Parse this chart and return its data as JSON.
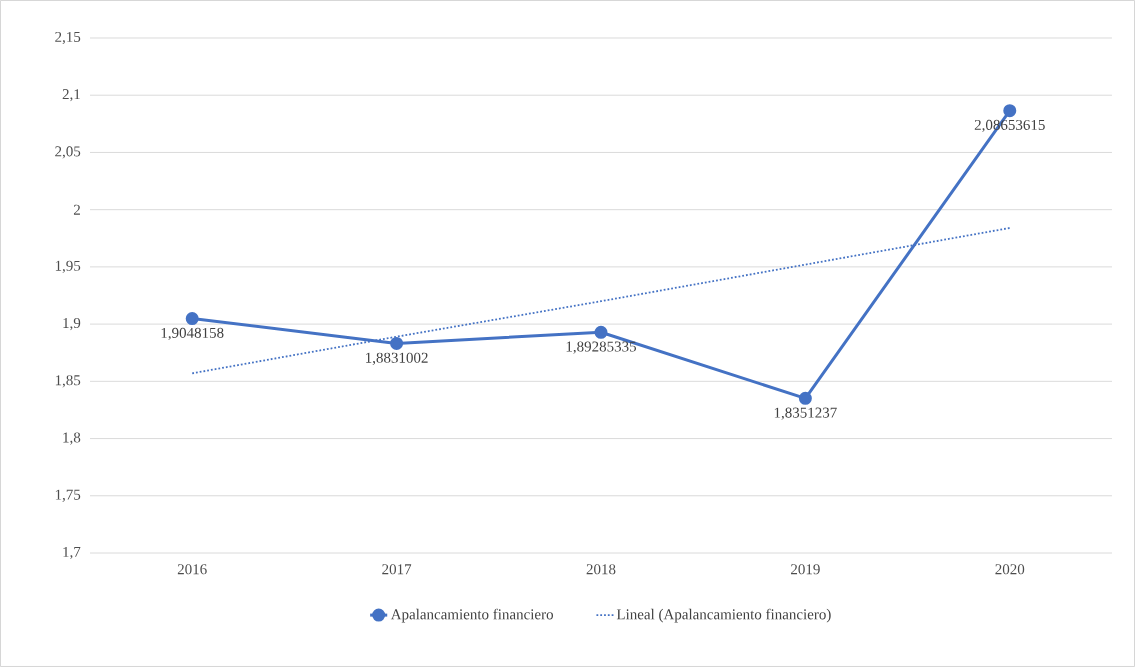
{
  "chart_data": {
    "type": "line",
    "categories": [
      "2016",
      "2017",
      "2018",
      "2019",
      "2020"
    ],
    "series": [
      {
        "name": "Apalancamiento financiero",
        "color": "#4472c4",
        "values": [
          1.9048158,
          1.8831002,
          1.89285335,
          1.8351237,
          2.08653615
        ],
        "marker": "circle",
        "line_style": "solid",
        "value_labels": [
          "1,9048158",
          "1,8831002",
          "1,89285335",
          "1,8351237",
          "2,08653615"
        ]
      },
      {
        "name": "Lineal (Apalancamiento financiero)",
        "color": "#4472c4",
        "values": [
          1.857,
          1.889,
          1.92,
          1.952,
          1.984
        ],
        "marker": "none",
        "line_style": "dotted"
      }
    ],
    "ylim": [
      1.7,
      2.15
    ],
    "yticks": [
      {
        "value": 1.7,
        "label": "1,7"
      },
      {
        "value": 1.75,
        "label": "1,75"
      },
      {
        "value": 1.8,
        "label": "1,8"
      },
      {
        "value": 1.85,
        "label": "1,85"
      },
      {
        "value": 1.9,
        "label": "1,9"
      },
      {
        "value": 1.95,
        "label": "1,95"
      },
      {
        "value": 2.0,
        "label": "2"
      },
      {
        "value": 2.05,
        "label": "2,05"
      },
      {
        "value": 2.1,
        "label": "2,1"
      },
      {
        "value": 2.15,
        "label": "2,15"
      }
    ],
    "grid": "y",
    "legend": "bottom"
  }
}
